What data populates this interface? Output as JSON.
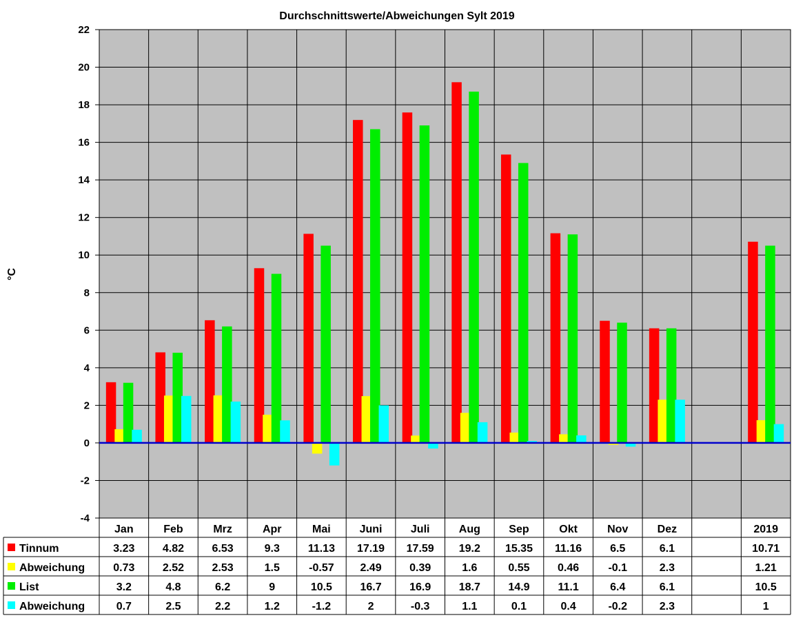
{
  "chart_data": {
    "type": "bar",
    "title": "Durchschnittswerte/Abweichungen Sylt 2019",
    "ylabel": "°C",
    "ylim": [
      -4,
      22
    ],
    "yticks": [
      22,
      20,
      18,
      16,
      14,
      12,
      10,
      8,
      6,
      4,
      2,
      0,
      -2,
      -4
    ],
    "grid": true,
    "legend": "bottom-left (data table)",
    "categories": [
      "Jan",
      "Feb",
      "Mrz",
      "Apr",
      "Mai",
      "Juni",
      "Juli",
      "Aug",
      "Sep",
      "Okt",
      "Nov",
      "Dez",
      "",
      "2019"
    ],
    "series": [
      {
        "name": "Tinnum",
        "color": "#ff0000",
        "values": [
          3.23,
          4.82,
          6.53,
          9.3,
          11.13,
          17.19,
          17.59,
          19.2,
          15.35,
          11.16,
          6.5,
          6.1,
          null,
          10.71
        ],
        "labels": [
          "3.23",
          "4.82",
          "6.53",
          "9.3",
          "11.13",
          "17.19",
          "17.59",
          "19.2",
          "15.35",
          "11.16",
          "6.5",
          "6.1",
          "",
          "10.71"
        ]
      },
      {
        "name": "Abweichung",
        "color": "#ffff00",
        "values": [
          0.73,
          2.52,
          2.53,
          1.5,
          -0.57,
          2.49,
          0.39,
          1.6,
          0.55,
          0.46,
          -0.1,
          2.3,
          null,
          1.21
        ],
        "labels": [
          "0.73",
          "2.52",
          "2.53",
          "1.5",
          "-0.57",
          "2.49",
          "0.39",
          "1.6",
          "0.55",
          "0.46",
          "-0.1",
          "2.3",
          "",
          "1.21"
        ]
      },
      {
        "name": "List",
        "color": "#00ee00",
        "values": [
          3.2,
          4.8,
          6.2,
          9,
          10.5,
          16.7,
          16.9,
          18.7,
          14.9,
          11.1,
          6.4,
          6.1,
          null,
          10.5
        ],
        "labels": [
          "3.2",
          "4.8",
          "6.2",
          "9",
          "10.5",
          "16.7",
          "16.9",
          "18.7",
          "14.9",
          "11.1",
          "6.4",
          "6.1",
          "",
          "10.5"
        ]
      },
      {
        "name": "Abweichung",
        "color": "#00ffff",
        "values": [
          0.7,
          2.5,
          2.2,
          1.2,
          -1.2,
          2,
          -0.3,
          1.1,
          0.1,
          0.4,
          -0.2,
          2.3,
          null,
          1
        ],
        "labels": [
          "0.7",
          "2.5",
          "2.2",
          "1.2",
          "-1.2",
          "2",
          "-0.3",
          "1.1",
          "0.1",
          "0.4",
          "-0.2",
          "2.3",
          "",
          "1"
        ]
      }
    ],
    "colors": {
      "plot_background": "#c0c0c0",
      "gridline": "#000000",
      "zero_line": "#0000cc"
    }
  }
}
